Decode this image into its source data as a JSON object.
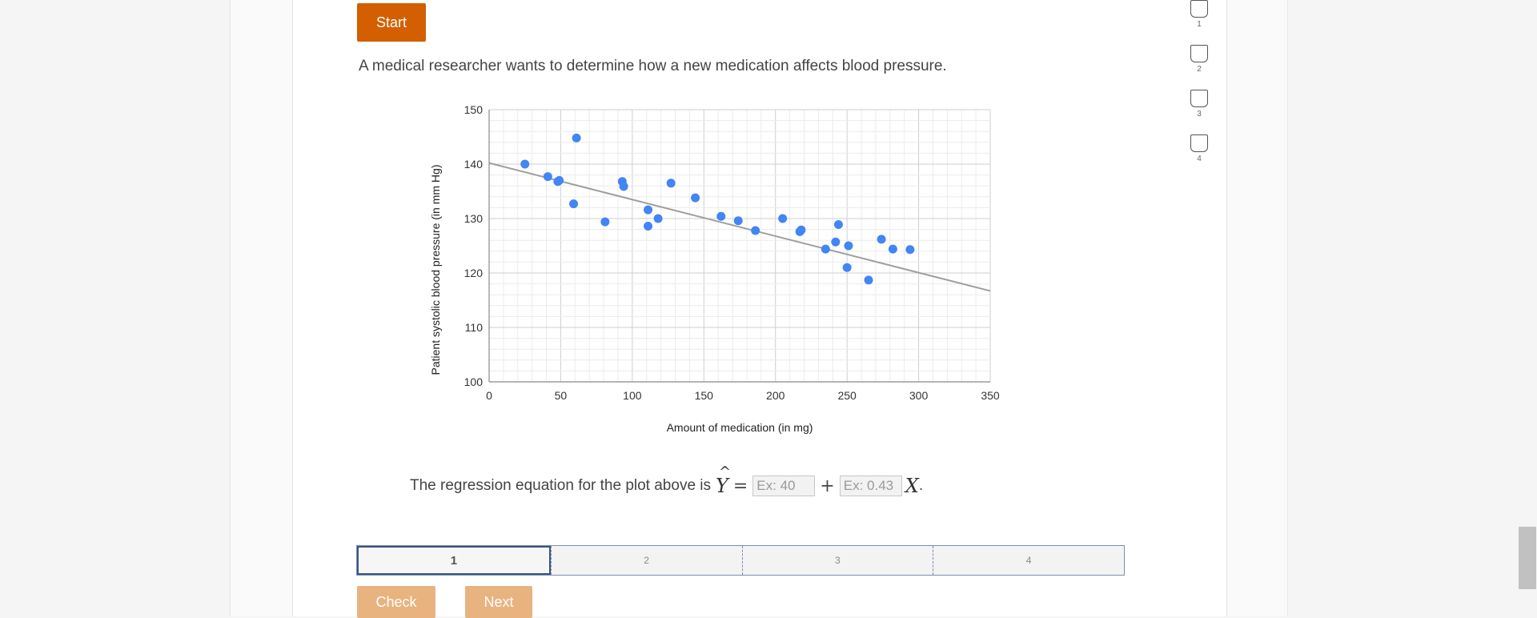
{
  "start_label": "Start",
  "question_text": "A medical researcher wants to determine how a new medication affects blood pressure.",
  "regression": {
    "prefix": "The regression equation for the plot above is",
    "intercept_placeholder": "Ex: 40",
    "slope_placeholder": "Ex: 0.43",
    "suffix": "."
  },
  "progress": {
    "segments": [
      "1",
      "2",
      "3",
      "4"
    ],
    "active_index": 0
  },
  "buttons": {
    "check": "Check",
    "next": "Next"
  },
  "side_nav": {
    "items": [
      "1",
      "2",
      "3",
      "4"
    ]
  },
  "colors": {
    "accent": "#d35f00",
    "point": "#4285f4",
    "trend": "#9e9e9e",
    "button_disabled": "#e8b37f"
  },
  "chart_data": {
    "type": "scatter",
    "xlabel": "Amount of medication (in mg)",
    "ylabel": "Patient systolic blood pressure (in mm Hg)",
    "xlim": [
      0,
      350
    ],
    "ylim": [
      100,
      150
    ],
    "x_ticks": [
      0,
      50,
      100,
      150,
      200,
      250,
      300,
      350
    ],
    "y_ticks": [
      100,
      110,
      120,
      130,
      140,
      150
    ],
    "grid": true,
    "points": [
      {
        "x": 25,
        "y": 140
      },
      {
        "x": 41,
        "y": 137.7
      },
      {
        "x": 48,
        "y": 136.8
      },
      {
        "x": 49,
        "y": 137
      },
      {
        "x": 59,
        "y": 132.7
      },
      {
        "x": 61,
        "y": 144.8
      },
      {
        "x": 81,
        "y": 129.4
      },
      {
        "x": 93,
        "y": 136.8
      },
      {
        "x": 94,
        "y": 135.9
      },
      {
        "x": 111,
        "y": 131.6
      },
      {
        "x": 111,
        "y": 128.6
      },
      {
        "x": 118,
        "y": 130
      },
      {
        "x": 127,
        "y": 136.5
      },
      {
        "x": 144,
        "y": 133.8
      },
      {
        "x": 162,
        "y": 130.4
      },
      {
        "x": 174,
        "y": 129.6
      },
      {
        "x": 186,
        "y": 127.8
      },
      {
        "x": 205,
        "y": 130
      },
      {
        "x": 217,
        "y": 127.6
      },
      {
        "x": 218,
        "y": 127.9
      },
      {
        "x": 235,
        "y": 124.4
      },
      {
        "x": 242,
        "y": 125.7
      },
      {
        "x": 244,
        "y": 128.9
      },
      {
        "x": 250,
        "y": 121
      },
      {
        "x": 251,
        "y": 125
      },
      {
        "x": 265,
        "y": 118.7
      },
      {
        "x": 274,
        "y": 126.2
      },
      {
        "x": 282,
        "y": 124.4
      },
      {
        "x": 294,
        "y": 124.3
      }
    ],
    "trendline": [
      {
        "x": 0,
        "y": 140.2
      },
      {
        "x": 350,
        "y": 116.7
      }
    ]
  }
}
